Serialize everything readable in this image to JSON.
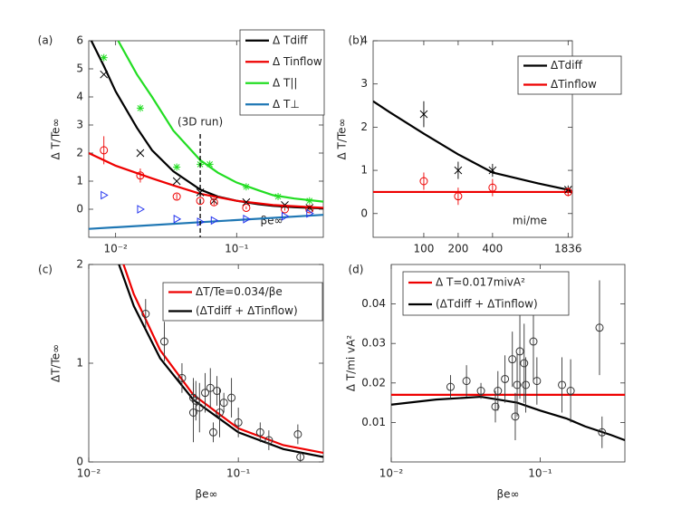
{
  "chart_data": [
    {
      "type": "line",
      "panel": "(a)",
      "xlabel": "βe∞",
      "ylabel": "Δ T/Te∞",
      "xscale": "log",
      "xlim": [
        0.006,
        0.52
      ],
      "ylim": [
        -1,
        6
      ],
      "xticks": [
        {
          "value": 0.01,
          "label": "10⁻²"
        },
        {
          "value": 0.1,
          "label": "10⁻¹"
        }
      ],
      "yticks": [
        0,
        1,
        2,
        3,
        4,
        5,
        6
      ],
      "vline": {
        "x": 0.05,
        "label": "(3D run)"
      },
      "series": [
        {
          "name": "Δ Tdiff",
          "color": "#000000",
          "style": "line",
          "x": [
            0.0063,
            0.008,
            0.01,
            0.015,
            0.02,
            0.03,
            0.05,
            0.07,
            0.1,
            0.15,
            0.2,
            0.3,
            0.52
          ],
          "values": [
            6,
            5.1,
            4.2,
            2.9,
            2.1,
            1.35,
            0.7,
            0.45,
            0.3,
            0.18,
            0.12,
            0.07,
            0.03
          ]
        },
        {
          "name": "Δ Tinflow",
          "color": "#ee0000",
          "style": "line",
          "x": [
            0.006,
            0.01,
            0.02,
            0.03,
            0.05,
            0.1,
            0.2,
            0.52
          ],
          "values": [
            2.0,
            1.55,
            1.1,
            0.85,
            0.55,
            0.3,
            0.15,
            0.05
          ]
        },
        {
          "name": "Δ T||",
          "color": "#22dd22",
          "style": "line",
          "x": [
            0.0105,
            0.015,
            0.02,
            0.03,
            0.05,
            0.07,
            0.1,
            0.15,
            0.2,
            0.3,
            0.52
          ],
          "values": [
            6,
            4.8,
            4.0,
            2.8,
            1.75,
            1.3,
            0.95,
            0.68,
            0.5,
            0.38,
            0.27
          ]
        },
        {
          "name": "Δ T⊥",
          "color": "#1f77b4",
          "style": "line",
          "x": [
            0.006,
            0.52
          ],
          "values": [
            -0.7,
            -0.2
          ]
        },
        {
          "color": "#000000",
          "style": "marker",
          "marker": "x",
          "x": [
            0.008,
            0.016,
            0.032,
            0.05,
            0.065,
            0.12,
            0.25,
            0.4
          ],
          "values": [
            4.8,
            2.0,
            1.0,
            0.6,
            0.3,
            0.25,
            0.15,
            0.05
          ]
        },
        {
          "color": "#ee0000",
          "style": "marker",
          "marker": "o",
          "x": [
            0.008,
            0.016,
            0.032,
            0.05,
            0.065,
            0.12,
            0.25,
            0.4
          ],
          "values": [
            2.1,
            1.2,
            0.45,
            0.3,
            0.25,
            0.05,
            0.0,
            0.0
          ],
          "errors": [
            0.5,
            0.25,
            0.1,
            0.1,
            0.1,
            0.05,
            0.05,
            0.05
          ]
        },
        {
          "color": "#22dd22",
          "style": "marker",
          "marker": "*",
          "x": [
            0.008,
            0.016,
            0.032,
            0.05,
            0.06,
            0.12,
            0.22,
            0.4
          ],
          "values": [
            5.4,
            3.6,
            1.5,
            1.6,
            1.6,
            0.8,
            0.45,
            0.3
          ]
        },
        {
          "color": "#2233ee",
          "style": "marker",
          "marker": ">",
          "x": [
            0.008,
            0.016,
            0.032,
            0.05,
            0.065,
            0.12,
            0.25,
            0.4
          ],
          "values": [
            0.5,
            0.0,
            -0.35,
            -0.45,
            -0.4,
            -0.35,
            -0.25,
            -0.15
          ]
        }
      ]
    },
    {
      "type": "line",
      "panel": "(b)",
      "xlabel": "mi/me",
      "ylabel": "Δ T/Te∞",
      "xscale": "log",
      "xlim": [
        36,
        2000
      ],
      "ylim": [
        -0.55,
        4
      ],
      "xticks": [
        100,
        200,
        400,
        1836
      ],
      "yticks": [
        0,
        1,
        2,
        3,
        4
      ],
      "series": [
        {
          "name": "ΔTdiff",
          "color": "#000000",
          "style": "line",
          "x": [
            36,
            50,
            100,
            200,
            400,
            1000,
            1836,
            2000
          ],
          "values": [
            2.6,
            2.35,
            1.85,
            1.37,
            0.95,
            0.7,
            0.55,
            0.5
          ]
        },
        {
          "name": "ΔTinflow",
          "color": "#ee0000",
          "style": "line",
          "x": [
            36,
            2000
          ],
          "values": [
            0.5,
            0.5
          ]
        },
        {
          "color": "#000000",
          "style": "marker",
          "marker": "x",
          "x": [
            100,
            200,
            400,
            1836
          ],
          "values": [
            2.3,
            1.0,
            1.0,
            0.55
          ],
          "errors": [
            0.3,
            0.2,
            0.15,
            0.1
          ]
        },
        {
          "color": "#ee0000",
          "style": "marker",
          "marker": "o",
          "x": [
            100,
            200,
            400,
            1836
          ],
          "values": [
            0.75,
            0.4,
            0.6,
            0.5
          ],
          "errors": [
            0.2,
            0.2,
            0.2,
            0.1
          ]
        }
      ]
    },
    {
      "type": "line",
      "panel": "(c)",
      "xlabel": "βe∞",
      "ylabel": "ΔT/Te∞",
      "xscale": "log",
      "xlim": [
        0.01,
        0.37
      ],
      "ylim": [
        0,
        2
      ],
      "xticks": [
        {
          "value": 0.01,
          "label": "10⁻²"
        },
        {
          "value": 0.1,
          "label": "10⁻¹"
        }
      ],
      "yticks": [
        0,
        1,
        2
      ],
      "series": [
        {
          "name": "ΔT/Te=0.034/βe",
          "color": "#ee0000",
          "style": "line",
          "x": [
            0.016,
            0.02,
            0.03,
            0.05,
            0.1,
            0.2,
            0.37
          ],
          "values": [
            2.125,
            1.7,
            1.133,
            0.68,
            0.34,
            0.17,
            0.092
          ]
        },
        {
          "name": "(ΔTdiff + ΔTinflow)",
          "color": "#000000",
          "style": "line",
          "x": [
            0.0155,
            0.02,
            0.03,
            0.05,
            0.1,
            0.2,
            0.37
          ],
          "values": [
            2.05,
            1.58,
            1.05,
            0.63,
            0.3,
            0.13,
            0.05
          ]
        },
        {
          "color": "#333333",
          "style": "marker",
          "marker": "o",
          "x": [
            0.024,
            0.032,
            0.042,
            0.05,
            0.05,
            0.052,
            0.055,
            0.06,
            0.065,
            0.068,
            0.072,
            0.075,
            0.08,
            0.09,
            0.1,
            0.14,
            0.16,
            0.25,
            0.26
          ],
          "values": [
            1.5,
            1.22,
            0.85,
            0.65,
            0.5,
            0.62,
            0.55,
            0.7,
            0.75,
            0.3,
            0.72,
            0.5,
            0.6,
            0.65,
            0.4,
            0.3,
            0.22,
            0.28,
            0.05
          ],
          "errors": [
            0.15,
            0.2,
            0.15,
            0.2,
            0.3,
            0.2,
            0.25,
            0.2,
            0.2,
            0.1,
            0.15,
            0.25,
            0.1,
            0.2,
            0.15,
            0.1,
            0.1,
            0.1,
            0.05
          ]
        }
      ]
    },
    {
      "type": "line",
      "panel": "(d)",
      "xlabel": "βe∞",
      "ylabel": "Δ T/mi vA²",
      "xscale": "log",
      "xlim": [
        0.01,
        0.37
      ],
      "ylim": [
        0,
        0.05
      ],
      "xticks": [
        {
          "value": 0.01,
          "label": "10⁻²"
        },
        {
          "value": 0.1,
          "label": "10⁻¹"
        }
      ],
      "yticks": [
        0.01,
        0.02,
        0.03,
        0.04
      ],
      "series": [
        {
          "name": "Δ T=0.017mivA²",
          "color": "#ee0000",
          "style": "line",
          "x": [
            0.01,
            0.37
          ],
          "values": [
            0.017,
            0.017
          ]
        },
        {
          "name": "(ΔTdiff + ΔTinflow)",
          "color": "#000000",
          "style": "line",
          "x": [
            0.01,
            0.02,
            0.04,
            0.07,
            0.1,
            0.15,
            0.2,
            0.3,
            0.37
          ],
          "values": [
            0.0145,
            0.0158,
            0.0165,
            0.015,
            0.013,
            0.011,
            0.009,
            0.0068,
            0.0055
          ]
        },
        {
          "color": "#333333",
          "style": "marker",
          "marker": "o",
          "x": [
            0.025,
            0.032,
            0.04,
            0.05,
            0.052,
            0.058,
            0.065,
            0.068,
            0.07,
            0.073,
            0.078,
            0.08,
            0.09,
            0.095,
            0.14,
            0.16,
            0.25,
            0.26
          ],
          "values": [
            0.019,
            0.0205,
            0.018,
            0.014,
            0.018,
            0.021,
            0.026,
            0.0115,
            0.0195,
            0.028,
            0.025,
            0.0195,
            0.0305,
            0.0205,
            0.0195,
            0.018,
            0.034,
            0.0075
          ],
          "errors": [
            0.003,
            0.004,
            0.002,
            0.004,
            0.005,
            0.006,
            0.007,
            0.006,
            0.008,
            0.012,
            0.01,
            0.007,
            0.01,
            0.006,
            0.007,
            0.008,
            0.012,
            0.004
          ]
        }
      ]
    }
  ]
}
